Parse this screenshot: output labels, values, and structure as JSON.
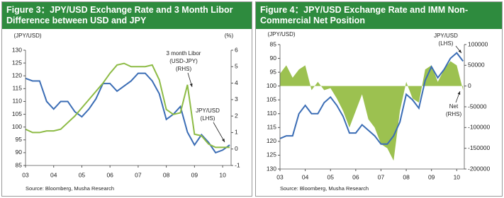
{
  "chart_data": [
    {
      "type": "line",
      "title": "Figure 3：JPY/USD Exchange Rate and 3 Month Libor Difference between USD and JPY",
      "ylabel": "(JPY/USD)",
      "y2label": "(%)",
      "source": "Source: Bloomberg, Musha Research",
      "x": [
        3,
        3.25,
        3.5,
        3.75,
        4,
        4.25,
        4.5,
        4.75,
        5,
        5.25,
        5.5,
        5.75,
        6,
        6.25,
        6.5,
        6.75,
        7,
        7.25,
        7.5,
        7.75,
        8,
        8.25,
        8.5,
        8.75,
        9,
        9.25,
        9.5,
        9.75,
        10,
        10.25
      ],
      "xlim": [
        3,
        10.3
      ],
      "xticks": [
        {
          "value": 3,
          "label": "03"
        },
        {
          "value": 4,
          "label": "04"
        },
        {
          "value": 5,
          "label": "05"
        },
        {
          "value": 6,
          "label": "06"
        },
        {
          "value": 7,
          "label": "07"
        },
        {
          "value": 8,
          "label": "08"
        },
        {
          "value": 9,
          "label": "09"
        },
        10
      ],
      "ylim": [
        85,
        130
      ],
      "yticks": [
        85,
        90,
        95,
        100,
        105,
        110,
        115,
        120,
        125,
        130
      ],
      "y2lim": [
        -1,
        6
      ],
      "y2ticks": [
        -1,
        0,
        1,
        2,
        3,
        4,
        5,
        6
      ],
      "series": [
        {
          "name": "JPY/USD (LHS)",
          "color": "#3b6db5",
          "axis": "y",
          "values": [
            119,
            118,
            118,
            110,
            107,
            110,
            110,
            106,
            104,
            107,
            111,
            117,
            117,
            114,
            116,
            118,
            121,
            121,
            118,
            113,
            103,
            105,
            108,
            98,
            93,
            97,
            94,
            90,
            91,
            93
          ]
        },
        {
          "name": "3 month Libor (USD-JPY) (RHS)",
          "color": "#8dbb45",
          "axis": "y2",
          "values": [
            1.2,
            1.0,
            1.0,
            1.1,
            1.1,
            1.2,
            1.6,
            2.0,
            2.5,
            3.0,
            3.5,
            4.0,
            4.6,
            5.1,
            5.2,
            5.0,
            5.0,
            5.0,
            5.1,
            4.2,
            2.4,
            2.1,
            2.2,
            3.9,
            0.9,
            0.8,
            0.3,
            0.1,
            0.1,
            0.1
          ]
        }
      ],
      "annotations": [
        [
          "3 month Libor",
          "(USD-JPY)",
          "(RHS)"
        ],
        [
          "JPY/USD",
          "(LHS)"
        ]
      ]
    },
    {
      "type": "line",
      "title": "Figure 4：JPY/USD Exchange Rate and IMM Non-Commercial Net Position",
      "ylabel": "(JPY/USD)",
      "source": "Source: Bloomberg, Musha Research",
      "x": [
        3,
        3.25,
        3.5,
        3.75,
        4,
        4.25,
        4.5,
        4.75,
        5,
        5.25,
        5.5,
        5.75,
        6,
        6.25,
        6.5,
        6.75,
        7,
        7.25,
        7.5,
        7.75,
        8,
        8.25,
        8.5,
        8.75,
        9,
        9.25,
        9.5,
        9.75,
        10,
        10.25
      ],
      "xlim": [
        3,
        10.3
      ],
      "xticks": [
        {
          "value": 3,
          "label": "03"
        },
        {
          "value": 4,
          "label": "04"
        },
        {
          "value": 5,
          "label": "05"
        },
        {
          "value": 6,
          "label": "06"
        },
        {
          "value": 7,
          "label": "07"
        },
        {
          "value": 8,
          "label": "08"
        },
        {
          "value": 9,
          "label": "09"
        },
        10
      ],
      "ylim": [
        85,
        130
      ],
      "yinvert": true,
      "yticks": [
        85,
        90,
        95,
        100,
        105,
        110,
        115,
        120,
        125,
        130
      ],
      "y2lim": [
        -200000,
        100000
      ],
      "y2ticks": [
        100000,
        50000,
        0,
        -50000,
        -100000,
        -150000,
        -200000
      ],
      "series": [
        {
          "name": "Net (RHS)",
          "color": "#9cc150",
          "axis": "y2",
          "type": "area",
          "values": [
            30000,
            50000,
            20000,
            40000,
            50000,
            -10000,
            10000,
            -10000,
            -5000,
            -30000,
            -60000,
            -100000,
            -60000,
            -20000,
            -80000,
            -100000,
            -140000,
            -150000,
            -180000,
            -60000,
            10000,
            -30000,
            -40000,
            40000,
            50000,
            10000,
            40000,
            60000,
            50000,
            -10000
          ]
        },
        {
          "name": "JPY/USD (LHS)",
          "color": "#3b6db5",
          "axis": "y",
          "values": [
            119,
            118,
            118,
            110,
            107,
            110,
            110,
            106,
            104,
            107,
            111,
            117,
            117,
            114,
            116,
            118,
            121,
            121,
            118,
            113,
            103,
            105,
            108,
            98,
            93,
            97,
            94,
            90,
            88,
            91
          ]
        }
      ],
      "annotations": [
        [
          "JPY/USD",
          "(LHS)"
        ],
        [
          "Net",
          "(RHS)"
        ]
      ]
    }
  ]
}
